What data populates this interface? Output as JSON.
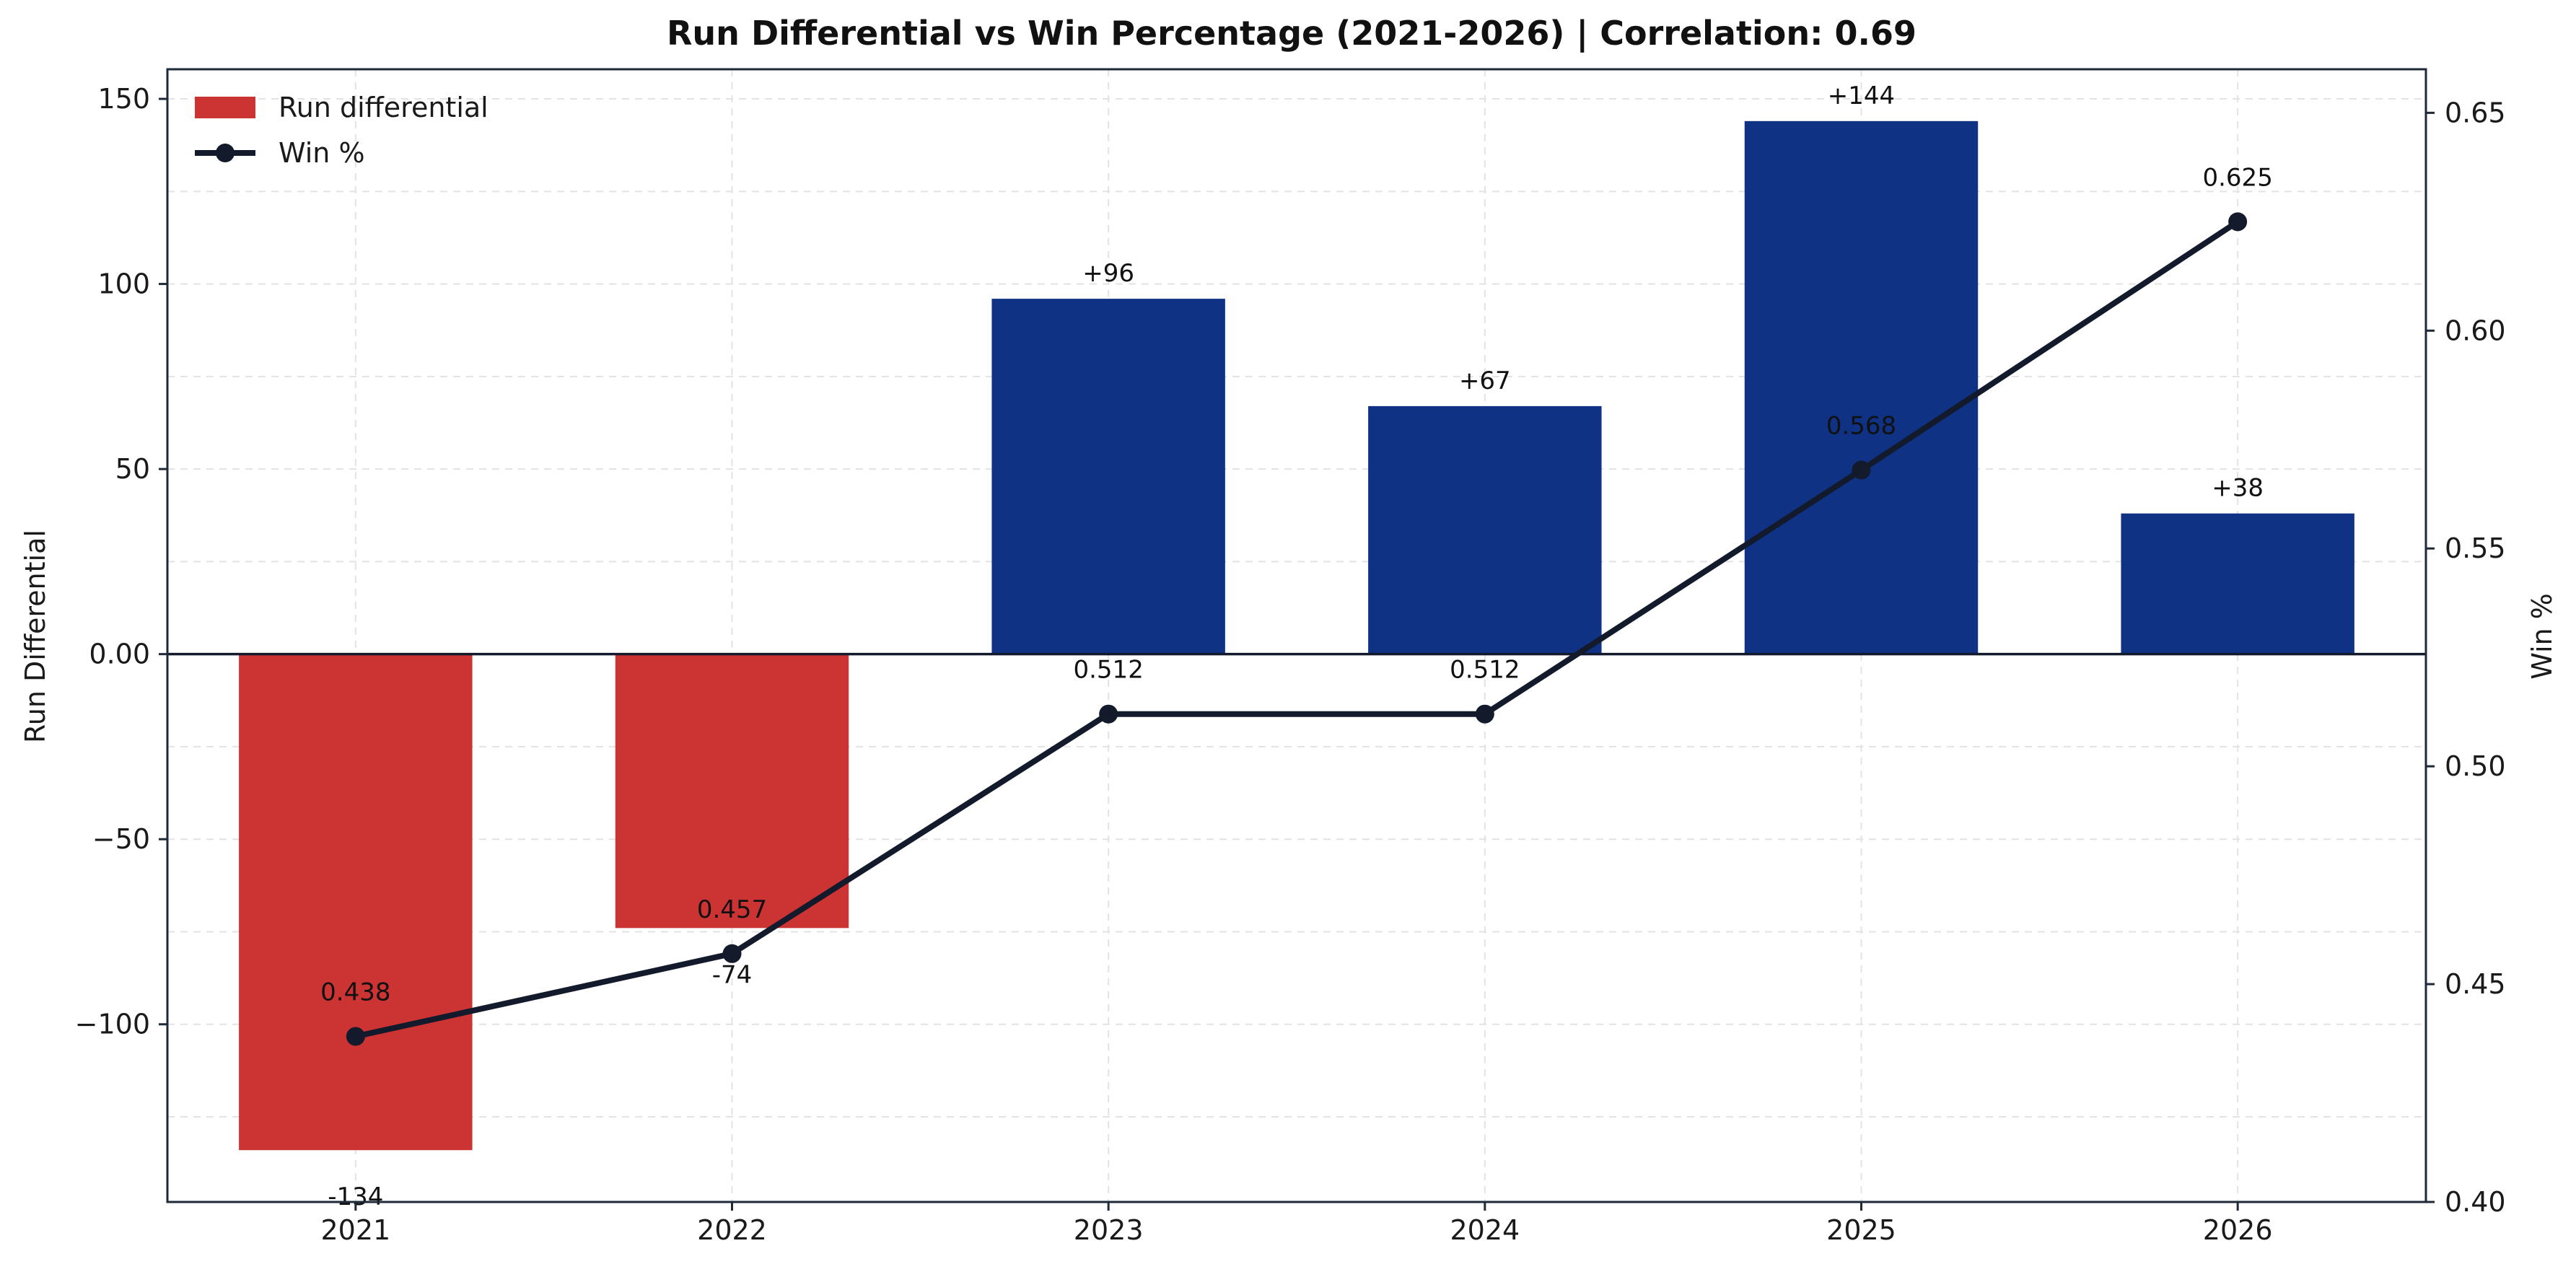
{
  "chart_data": {
    "type": "bar",
    "title": "Run Differential vs Win Percentage (2021-2026)  |  Correlation: 0.69",
    "categories": [
      "2021",
      "2022",
      "2023",
      "2024",
      "2025",
      "2026"
    ],
    "ylabel": "Run Differential",
    "ylabel_right": "Win %",
    "ylim": [
      -148,
      158
    ],
    "ylim_right": [
      0.4,
      0.66
    ],
    "yticks": [
      -100,
      -50,
      0,
      50,
      100,
      150
    ],
    "yticks_right": [
      0.4,
      0.45,
      0.5,
      0.55,
      0.6,
      0.65
    ],
    "grid": true,
    "legend_position": "top-left",
    "series": [
      {
        "name": "Run differential",
        "type": "bar",
        "axis": "left",
        "values": [
          -134,
          -74,
          96,
          67,
          144,
          38
        ],
        "labels": [
          "-134",
          "-74",
          "+96",
          "+67",
          "+144",
          "+38"
        ],
        "color_positive": "#0f3285",
        "color_negative": "#cc3333"
      },
      {
        "name": "Win %",
        "type": "line",
        "axis": "right",
        "values": [
          0.438,
          0.457,
          0.512,
          0.512,
          0.568,
          0.625
        ],
        "labels": [
          "0.438",
          "0.457",
          "0.512",
          "0.512",
          "0.568",
          "0.625"
        ],
        "color": "#121a2b"
      }
    ]
  }
}
